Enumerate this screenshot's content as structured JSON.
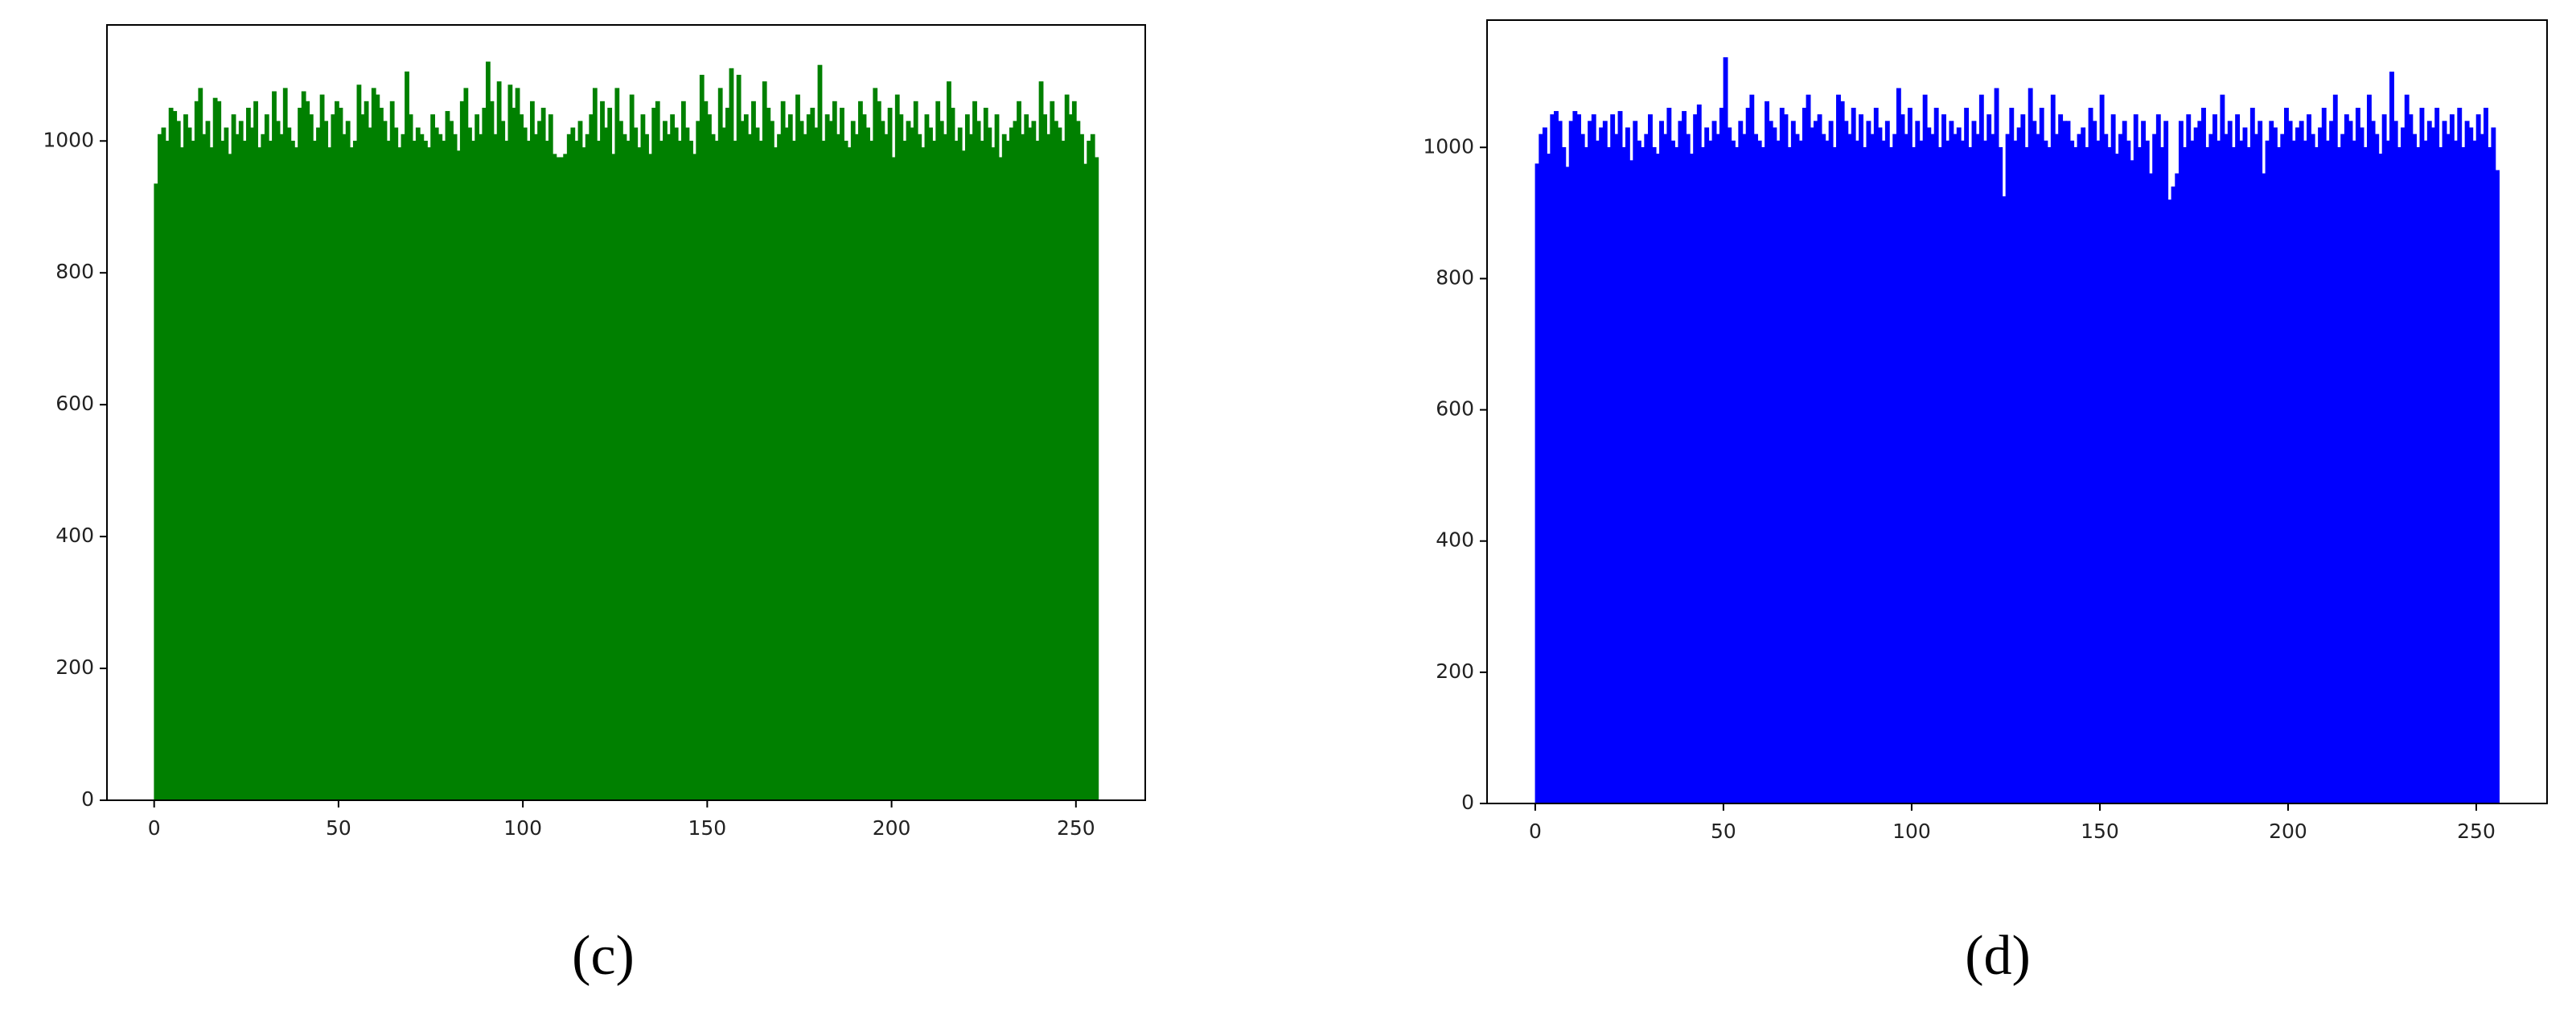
{
  "chart_data": [
    {
      "type": "histogram",
      "caption": "(c)",
      "color": "#008000",
      "bins": [
        0,
        1,
        2,
        3,
        4,
        5,
        6,
        7,
        8,
        9,
        10,
        11,
        12,
        13,
        14,
        15,
        16,
        17,
        18,
        19,
        20,
        21,
        22,
        23,
        24,
        25,
        26,
        27,
        28,
        29,
        30,
        31,
        32,
        33,
        34,
        35,
        36,
        37,
        38,
        39,
        40,
        41,
        42,
        43,
        44,
        45,
        46,
        47,
        48,
        49,
        50,
        51,
        52,
        53,
        54,
        55,
        56,
        57,
        58,
        59,
        60,
        61,
        62,
        63,
        64,
        65,
        66,
        67,
        68,
        69,
        70,
        71,
        72,
        73,
        74,
        75,
        76,
        77,
        78,
        79,
        80,
        81,
        82,
        83,
        84,
        85,
        86,
        87,
        88,
        89,
        90,
        91,
        92,
        93,
        94,
        95,
        96,
        97,
        98,
        99,
        100,
        101,
        102,
        103,
        104,
        105,
        106,
        107,
        108,
        109,
        110,
        111,
        112,
        113,
        114,
        115,
        116,
        117,
        118,
        119,
        120,
        121,
        122,
        123,
        124,
        125,
        126,
        127,
        128,
        129,
        130,
        131,
        132,
        133,
        134,
        135,
        136,
        137,
        138,
        139,
        140,
        141,
        142,
        143,
        144,
        145,
        146,
        147,
        148,
        149,
        150,
        151,
        152,
        153,
        154,
        155,
        156,
        157,
        158,
        159,
        160,
        161,
        162,
        163,
        164,
        165,
        166,
        167,
        168,
        169,
        170,
        171,
        172,
        173,
        174,
        175,
        176,
        177,
        178,
        179,
        180,
        181,
        182,
        183,
        184,
        185,
        186,
        187,
        188,
        189,
        190,
        191,
        192,
        193,
        194,
        195,
        196,
        197,
        198,
        199,
        200,
        201,
        202,
        203,
        204,
        205,
        206,
        207,
        208,
        209,
        210,
        211,
        212,
        213,
        214,
        215,
        216,
        217,
        218,
        219,
        220,
        221,
        222,
        223,
        224,
        225,
        226,
        227,
        228,
        229,
        230,
        231,
        232,
        233,
        234,
        235,
        236,
        237,
        238,
        239,
        240,
        241,
        242,
        243,
        244,
        245,
        246,
        247,
        248,
        249,
        250,
        251,
        252,
        253,
        254,
        255,
        256
      ],
      "values": [
        935,
        1010,
        1020,
        1000,
        1050,
        1045,
        1030,
        990,
        1040,
        1020,
        1000,
        1060,
        1080,
        1010,
        1030,
        990,
        1065,
        1060,
        1000,
        1020,
        980,
        1040,
        1010,
        1030,
        1000,
        1050,
        1020,
        1060,
        990,
        1010,
        1040,
        1000,
        1075,
        1030,
        1010,
        1080,
        1020,
        1000,
        990,
        1050,
        1075,
        1060,
        1040,
        1000,
        1020,
        1070,
        1030,
        990,
        1040,
        1060,
        1050,
        1010,
        1030,
        990,
        1000,
        1085,
        1040,
        1060,
        1020,
        1080,
        1070,
        1050,
        1030,
        1000,
        1060,
        1020,
        990,
        1010,
        1105,
        1040,
        1000,
        1020,
        1010,
        1000,
        990,
        1040,
        1020,
        1010,
        1000,
        1045,
        1030,
        1010,
        985,
        1060,
        1080,
        1020,
        1000,
        1040,
        1010,
        1050,
        1120,
        1060,
        1010,
        1090,
        1030,
        1000,
        1085,
        1050,
        1080,
        1040,
        1020,
        1000,
        1060,
        1010,
        1030,
        1050,
        1000,
        1040,
        980,
        975,
        975,
        980,
        1010,
        1020,
        1000,
        1030,
        990,
        1010,
        1040,
        1080,
        1000,
        1060,
        1020,
        1050,
        980,
        1080,
        1030,
        1010,
        1000,
        1070,
        1020,
        990,
        1040,
        1010,
        980,
        1050,
        1060,
        1000,
        1030,
        1010,
        1040,
        1020,
        1000,
        1060,
        1020,
        1000,
        980,
        1030,
        1100,
        1060,
        1040,
        1010,
        1000,
        1080,
        1020,
        1050,
        1110,
        1000,
        1100,
        1030,
        1040,
        1010,
        1060,
        1020,
        1000,
        1090,
        1050,
        1030,
        990,
        1010,
        1060,
        1020,
        1040,
        1000,
        1070,
        1030,
        1010,
        1040,
        1050,
        1020,
        1115,
        1000,
        1040,
        1030,
        1060,
        1010,
        1050,
        1000,
        990,
        1030,
        1010,
        1060,
        1040,
        1020,
        1000,
        1080,
        1060,
        1030,
        1010,
        1050,
        975,
        1070,
        1040,
        1000,
        1030,
        1020,
        1060,
        1010,
        990,
        1040,
        1020,
        1000,
        1060,
        1030,
        1010,
        1090,
        1050,
        1000,
        1020,
        985,
        1040,
        1010,
        1060,
        1030,
        1000,
        1050,
        1020,
        990,
        1040,
        975,
        1010,
        1000,
        1020,
        1030,
        1060,
        1010,
        1040,
        1020,
        1030,
        1000,
        1090,
        1040,
        1010,
        1060,
        1030,
        1020,
        1000,
        1070,
        1040,
        1060,
        1030,
        1010,
        965,
        1000,
        1010,
        975
      ],
      "xlim": [
        -12.8,
        268.8
      ],
      "xticks": [
        0,
        50,
        100,
        150,
        200,
        250
      ],
      "ylim": [
        0,
        1176
      ],
      "yticks": [
        0,
        200,
        400,
        600,
        800,
        1000
      ]
    },
    {
      "type": "histogram",
      "caption": "(d)",
      "color": "#0000ff",
      "bins": [
        0,
        1,
        2,
        3,
        4,
        5,
        6,
        7,
        8,
        9,
        10,
        11,
        12,
        13,
        14,
        15,
        16,
        17,
        18,
        19,
        20,
        21,
        22,
        23,
        24,
        25,
        26,
        27,
        28,
        29,
        30,
        31,
        32,
        33,
        34,
        35,
        36,
        37,
        38,
        39,
        40,
        41,
        42,
        43,
        44,
        45,
        46,
        47,
        48,
        49,
        50,
        51,
        52,
        53,
        54,
        55,
        56,
        57,
        58,
        59,
        60,
        61,
        62,
        63,
        64,
        65,
        66,
        67,
        68,
        69,
        70,
        71,
        72,
        73,
        74,
        75,
        76,
        77,
        78,
        79,
        80,
        81,
        82,
        83,
        84,
        85,
        86,
        87,
        88,
        89,
        90,
        91,
        92,
        93,
        94,
        95,
        96,
        97,
        98,
        99,
        100,
        101,
        102,
        103,
        104,
        105,
        106,
        107,
        108,
        109,
        110,
        111,
        112,
        113,
        114,
        115,
        116,
        117,
        118,
        119,
        120,
        121,
        122,
        123,
        124,
        125,
        126,
        127,
        128,
        129,
        130,
        131,
        132,
        133,
        134,
        135,
        136,
        137,
        138,
        139,
        140,
        141,
        142,
        143,
        144,
        145,
        146,
        147,
        148,
        149,
        150,
        151,
        152,
        153,
        154,
        155,
        156,
        157,
        158,
        159,
        160,
        161,
        162,
        163,
        164,
        165,
        166,
        167,
        168,
        169,
        170,
        171,
        172,
        173,
        174,
        175,
        176,
        177,
        178,
        179,
        180,
        181,
        182,
        183,
        184,
        185,
        186,
        187,
        188,
        189,
        190,
        191,
        192,
        193,
        194,
        195,
        196,
        197,
        198,
        199,
        200,
        201,
        202,
        203,
        204,
        205,
        206,
        207,
        208,
        209,
        210,
        211,
        212,
        213,
        214,
        215,
        216,
        217,
        218,
        219,
        220,
        221,
        222,
        223,
        224,
        225,
        226,
        227,
        228,
        229,
        230,
        231,
        232,
        233,
        234,
        235,
        236,
        237,
        238,
        239,
        240,
        241,
        242,
        243,
        244,
        245,
        246,
        247,
        248,
        249,
        250,
        251,
        252,
        253,
        254,
        255,
        256
      ],
      "values": [
        975,
        1020,
        1030,
        990,
        1050,
        1055,
        1040,
        1000,
        970,
        1040,
        1055,
        1050,
        1020,
        1000,
        1040,
        1050,
        1010,
        1030,
        1040,
        1000,
        1050,
        1020,
        1055,
        1000,
        1030,
        980,
        1040,
        1010,
        1000,
        1020,
        1050,
        1000,
        990,
        1040,
        1020,
        1060,
        1010,
        1000,
        1040,
        1055,
        1020,
        990,
        1050,
        1065,
        1000,
        1030,
        1010,
        1040,
        1020,
        1060,
        1137,
        1030,
        1010,
        1000,
        1040,
        1020,
        1060,
        1080,
        1020,
        1010,
        1000,
        1070,
        1040,
        1030,
        1010,
        1060,
        1050,
        1000,
        1040,
        1020,
        1010,
        1060,
        1080,
        1030,
        1040,
        1050,
        1020,
        1010,
        1040,
        1000,
        1080,
        1070,
        1040,
        1020,
        1060,
        1010,
        1050,
        1000,
        1040,
        1020,
        1060,
        1030,
        1010,
        1040,
        1000,
        1020,
        1090,
        1050,
        1020,
        1060,
        1000,
        1040,
        1010,
        1080,
        1030,
        1020,
        1060,
        1000,
        1050,
        1010,
        1040,
        1020,
        1030,
        1010,
        1060,
        1000,
        1040,
        1020,
        1080,
        1010,
        1050,
        1020,
        1090,
        1000,
        925,
        1020,
        1060,
        1010,
        1030,
        1050,
        1000,
        1090,
        1040,
        1020,
        1060,
        1010,
        1000,
        1080,
        1020,
        1050,
        1040,
        1040,
        1010,
        1000,
        1020,
        1030,
        1000,
        1060,
        1040,
        1010,
        1080,
        1020,
        1000,
        1050,
        990,
        1020,
        1040,
        1010,
        980,
        1050,
        1000,
        1040,
        1010,
        960,
        1020,
        1050,
        1000,
        1040,
        920,
        940,
        960,
        1040,
        1000,
        1050,
        1010,
        1030,
        1040,
        1060,
        1000,
        1020,
        1050,
        1010,
        1080,
        1020,
        1040,
        1000,
        1050,
        1010,
        1030,
        1000,
        1060,
        1020,
        1040,
        960,
        1010,
        1040,
        1030,
        1000,
        1020,
        1060,
        1040,
        1010,
        1030,
        1040,
        1010,
        1050,
        1020,
        1000,
        1030,
        1060,
        1010,
        1040,
        1080,
        1000,
        1020,
        1050,
        1040,
        1010,
        1060,
        1030,
        1000,
        1080,
        1040,
        1020,
        990,
        1050,
        1010,
        1115,
        1040,
        1000,
        1030,
        1080,
        1050,
        1020,
        1000,
        1060,
        1010,
        1040,
        1030,
        1060,
        1000,
        1040,
        1020,
        1050,
        1010,
        1060,
        1000,
        1040,
        1030,
        1010,
        1050,
        1020,
        1060,
        1000,
        1030,
        965
      ],
      "xlim": [
        -12.8,
        268.8
      ],
      "xticks": [
        0,
        50,
        100,
        150,
        200,
        250
      ],
      "ylim": [
        0,
        1194
      ],
      "yticks": [
        0,
        200,
        400,
        600,
        800,
        1000
      ]
    }
  ]
}
